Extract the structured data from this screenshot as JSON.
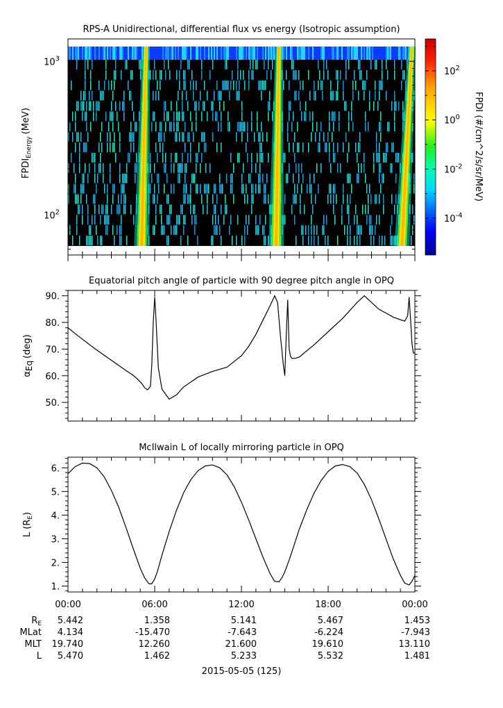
{
  "chart_data": [
    {
      "type": "heatmap",
      "title": "RPS-A Unidirectional, differential flux vs energy (Isotropic assumption)",
      "ylabel_main": "FPDI",
      "ylabel_sub": "Energy",
      "ylabel_unit": "(MeV)",
      "y_scale": "log",
      "ylim": [
        55,
        1400
      ],
      "yticks": [
        {
          "value": 1000,
          "base": "10",
          "exp": "3"
        },
        {
          "value": 100,
          "base": "10",
          "exp": "2"
        }
      ],
      "bright_bands_hours": [
        {
          "low_energy_hour": 5.1,
          "high_energy_hour": 5.4
        },
        {
          "low_energy_hour": 14.4,
          "high_energy_hour": 14.6
        },
        {
          "low_energy_hour": 23.1,
          "high_energy_hour": 23.8
        }
      ],
      "colorbar": {
        "label": "FPDI (#/cm^2/s/sr/MeV)",
        "scale": "log",
        "range": [
          -5.5,
          3.3
        ],
        "ticks": [
          {
            "value": 2,
            "base": "10",
            "exp": "2"
          },
          {
            "value": 0,
            "base": "10",
            "exp": "0"
          },
          {
            "value": -2,
            "base": "10",
            "exp": "-2"
          },
          {
            "value": -4,
            "base": "10",
            "exp": "-4"
          }
        ]
      }
    },
    {
      "type": "line",
      "title": "Equatorial pitch angle of particle with 90 degree pitch angle in OPQ",
      "ylabel_main": "α",
      "ylabel_sub": "Eq",
      "ylabel_unit": "(deg)",
      "ylim": [
        43,
        92
      ],
      "yticks": [
        "50.",
        "60.",
        "70.",
        "80.",
        "90."
      ],
      "series": [
        {
          "x": [
            0,
            0.5,
            1,
            1.5,
            2,
            2.5,
            3,
            3.5,
            4,
            4.5,
            4.8,
            5.1,
            5.3,
            5.5,
            5.7,
            5.8,
            5.9,
            6.0,
            6.1,
            6.25,
            6.5,
            7,
            7.5,
            8,
            9,
            10,
            11,
            12,
            12.5,
            13,
            13.5,
            14,
            14.3,
            14.5,
            14.7,
            14.9,
            15.0,
            15.1,
            15.2,
            15.3,
            15.4,
            15.5,
            15.7,
            16,
            17,
            18,
            19,
            19.5,
            20,
            20.5,
            21,
            21.5,
            22,
            22.5,
            23,
            23.3,
            23.5,
            23.6,
            23.7,
            23.8,
            23.9,
            24
          ],
          "y": [
            78,
            75.8,
            73.7,
            71.6,
            69.6,
            67.7,
            65.8,
            63.9,
            62,
            60.2,
            58.8,
            57.1,
            55.5,
            54.7,
            56,
            64,
            80,
            89.5,
            80,
            63,
            55,
            51.2,
            52.8,
            55.8,
            59.5,
            61.6,
            63.2,
            67.5,
            71,
            75.5,
            81,
            86.5,
            90,
            87.5,
            75,
            64,
            60,
            75,
            88.5,
            70,
            67.2,
            66.5,
            66.5,
            67,
            71.5,
            76.5,
            81.5,
            84.5,
            87.5,
            90,
            87.5,
            85,
            83.5,
            82,
            81,
            80.5,
            82.5,
            89.5,
            81,
            72,
            68.5,
            68.5
          ]
        }
      ]
    },
    {
      "type": "line",
      "title": "McIlwain L of locally mirroring particle in OPQ",
      "ylabel_main": "L (R",
      "ylabel_sub": "E",
      "ylabel_unit": ")",
      "ylim": [
        0.75,
        6.45
      ],
      "yticks": [
        "1.",
        "2.",
        "3.",
        "4.",
        "5.",
        "6."
      ],
      "series": [
        {
          "x": [
            0,
            0.5,
            1,
            1.5,
            2,
            2.5,
            3,
            3.5,
            4,
            4.5,
            5,
            5.3,
            5.6,
            5.8,
            6.0,
            6.2,
            6.5,
            7,
            7.5,
            8,
            8.5,
            9,
            9.5,
            10,
            10.5,
            11,
            11.5,
            12,
            12.5,
            13,
            13.5,
            14,
            14.3,
            14.6,
            14.8,
            15.0,
            15.3,
            15.6,
            16,
            16.5,
            17,
            17.5,
            18,
            18.5,
            19,
            19.5,
            20,
            20.5,
            21,
            21.5,
            22,
            22.5,
            23,
            23.3,
            23.6,
            23.8,
            24
          ],
          "y": [
            5.75,
            6.05,
            6.2,
            6.18,
            6.0,
            5.62,
            5.05,
            4.35,
            3.5,
            2.6,
            1.75,
            1.35,
            1.1,
            1.1,
            1.3,
            1.65,
            2.3,
            3.3,
            4.2,
            4.95,
            5.5,
            5.88,
            6.08,
            6.12,
            6.0,
            5.7,
            5.2,
            4.55,
            3.8,
            3.0,
            2.2,
            1.5,
            1.2,
            1.18,
            1.35,
            1.6,
            2.1,
            2.65,
            3.4,
            4.2,
            4.9,
            5.45,
            5.85,
            6.08,
            6.14,
            6.05,
            5.78,
            5.3,
            4.65,
            3.85,
            3.0,
            2.15,
            1.45,
            1.12,
            1.05,
            1.2,
            1.45
          ]
        }
      ]
    }
  ],
  "x_axis": {
    "ticks": [
      "00:00",
      "06:00",
      "12:00",
      "18:00",
      "00:00"
    ],
    "hours": [
      0,
      6,
      12,
      18,
      24
    ]
  },
  "ephemeris": {
    "rows": [
      {
        "label_main": "R",
        "label_sub": "E",
        "values": [
          "5.442",
          "1.358",
          "5.141",
          "5.467",
          "1.453"
        ]
      },
      {
        "label_main": "MLat",
        "label_sub": "",
        "values": [
          "4.134",
          "-15.470",
          "-7.643",
          "-6.224",
          "-7.943"
        ]
      },
      {
        "label_main": "MLT",
        "label_sub": "",
        "values": [
          "19.740",
          "12.260",
          "21.600",
          "19.610",
          "13.110"
        ]
      },
      {
        "label_main": "L",
        "label_sub": "",
        "values": [
          "5.470",
          "1.462",
          "5.233",
          "5.532",
          "1.481"
        ]
      }
    ],
    "date_label": "2015-05-05 (125)"
  }
}
